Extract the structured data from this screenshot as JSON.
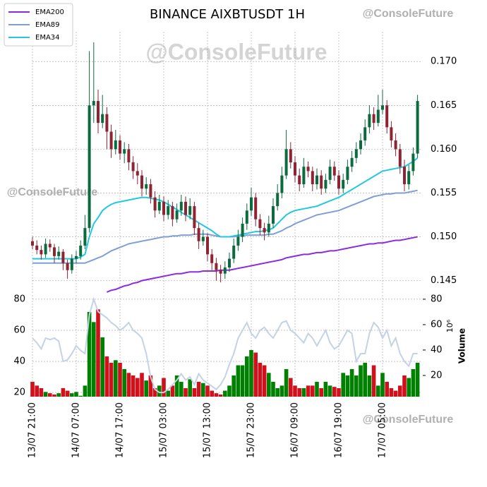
{
  "watermarks": [
    "@ConsoleFuture",
    "@ConsoleFuture",
    "@ConsoleFuture",
    "@ConsoleFuture"
  ],
  "chart_data": [
    {
      "type": "candlestick",
      "title": "BINANCE AIXBTUSDT 1H",
      "grid": true,
      "legend": "upper left",
      "colors": {
        "up": "#0b6b3e",
        "down": "#8e2433"
      },
      "ylim": [
        0.1436,
        0.1734
      ],
      "yticks": [
        0.145,
        {
          "value": 0.15,
          "label": "0.150"
        },
        0.155,
        {
          "value": 0.16,
          "label": "0.160"
        },
        0.165,
        {
          "value": 0.17,
          "label": "0.170"
        }
      ],
      "ohlc": [
        [
          0.1495,
          0.15,
          0.1486,
          0.149
        ],
        [
          0.149,
          0.1496,
          0.148,
          0.1485
        ],
        [
          0.1485,
          0.149,
          0.1474,
          0.148
        ],
        [
          0.148,
          0.1498,
          0.1476,
          0.1492
        ],
        [
          0.1492,
          0.1497,
          0.1483,
          0.1488
        ],
        [
          0.1488,
          0.1492,
          0.147,
          0.1478
        ],
        [
          0.1478,
          0.1489,
          0.1474,
          0.1483
        ],
        [
          0.1483,
          0.1486,
          0.1462,
          0.147
        ],
        [
          0.147,
          0.1474,
          0.1452,
          0.1462
        ],
        [
          0.1462,
          0.148,
          0.1458,
          0.1475
        ],
        [
          0.1475,
          0.1484,
          0.147,
          0.1478
        ],
        [
          0.1478,
          0.1496,
          0.1474,
          0.149
        ],
        [
          0.149,
          0.1525,
          0.1486,
          0.151
        ],
        [
          0.151,
          0.1712,
          0.1505,
          0.165
        ],
        [
          0.165,
          0.1722,
          0.163,
          0.1655
        ],
        [
          0.1655,
          0.1668,
          0.1618,
          0.163
        ],
        [
          0.163,
          0.1662,
          0.1624,
          0.164
        ],
        [
          0.164,
          0.1648,
          0.16,
          0.162
        ],
        [
          0.162,
          0.1628,
          0.159,
          0.16
        ],
        [
          0.16,
          0.1622,
          0.1594,
          0.161
        ],
        [
          0.161,
          0.1616,
          0.1588,
          0.1595
        ],
        [
          0.1595,
          0.1608,
          0.1584,
          0.16
        ],
        [
          0.16,
          0.1606,
          0.1576,
          0.1585
        ],
        [
          0.1585,
          0.1592,
          0.1566,
          0.1575
        ],
        [
          0.1575,
          0.1584,
          0.156,
          0.157
        ],
        [
          0.157,
          0.1576,
          0.1546,
          0.1555
        ],
        [
          0.1555,
          0.1568,
          0.1548,
          0.156
        ],
        [
          0.156,
          0.1566,
          0.1538,
          0.1545
        ],
        [
          0.1545,
          0.1552,
          0.1522,
          0.153
        ],
        [
          0.153,
          0.1548,
          0.1526,
          0.154
        ],
        [
          0.154,
          0.1546,
          0.1518,
          0.1525
        ],
        [
          0.1525,
          0.1542,
          0.152,
          0.1535
        ],
        [
          0.1535,
          0.154,
          0.1512,
          0.152
        ],
        [
          0.152,
          0.1538,
          0.1516,
          0.153
        ],
        [
          0.153,
          0.1548,
          0.1524,
          0.154
        ],
        [
          0.154,
          0.1546,
          0.1518,
          0.1525
        ],
        [
          0.1525,
          0.1544,
          0.152,
          0.1535
        ],
        [
          0.1535,
          0.154,
          0.1502,
          0.151
        ],
        [
          0.151,
          0.1516,
          0.1486,
          0.1495
        ],
        [
          0.1495,
          0.1508,
          0.149,
          0.15
        ],
        [
          0.15,
          0.1504,
          0.1472,
          0.148
        ],
        [
          0.148,
          0.1486,
          0.1462,
          0.147
        ],
        [
          0.147,
          0.1476,
          0.145,
          0.1462
        ],
        [
          0.1462,
          0.1468,
          0.1448,
          0.1458
        ],
        [
          0.1458,
          0.1472,
          0.1452,
          0.1465
        ],
        [
          0.1465,
          0.1482,
          0.146,
          0.1475
        ],
        [
          0.1475,
          0.1498,
          0.147,
          0.149
        ],
        [
          0.149,
          0.1508,
          0.1484,
          0.15
        ],
        [
          0.15,
          0.1522,
          0.1494,
          0.1515
        ],
        [
          0.1515,
          0.1538,
          0.1508,
          0.153
        ],
        [
          0.153,
          0.1556,
          0.1524,
          0.1545
        ],
        [
          0.1545,
          0.155,
          0.1512,
          0.152
        ],
        [
          0.152,
          0.1526,
          0.1502,
          0.151
        ],
        [
          0.151,
          0.1516,
          0.1496,
          0.1505
        ],
        [
          0.1505,
          0.1524,
          0.15,
          0.1515
        ],
        [
          0.1515,
          0.1544,
          0.151,
          0.1535
        ],
        [
          0.1535,
          0.156,
          0.153,
          0.155
        ],
        [
          0.155,
          0.158,
          0.1544,
          0.157
        ],
        [
          0.157,
          0.1622,
          0.1566,
          0.16
        ],
        [
          0.16,
          0.1608,
          0.1578,
          0.1585
        ],
        [
          0.1585,
          0.1592,
          0.1562,
          0.157
        ],
        [
          0.157,
          0.1578,
          0.1552,
          0.156
        ],
        [
          0.156,
          0.159,
          0.1556,
          0.158
        ],
        [
          0.158,
          0.1586,
          0.1568,
          0.1575
        ],
        [
          0.1575,
          0.158,
          0.1552,
          0.156
        ],
        [
          0.156,
          0.1578,
          0.1554,
          0.157
        ],
        [
          0.157,
          0.1576,
          0.1548,
          0.1555
        ],
        [
          0.1555,
          0.1572,
          0.155,
          0.1565
        ],
        [
          0.1565,
          0.1588,
          0.156,
          0.158
        ],
        [
          0.158,
          0.1586,
          0.1564,
          0.157
        ],
        [
          0.157,
          0.1576,
          0.1548,
          0.1555
        ],
        [
          0.1555,
          0.1572,
          0.155,
          0.1565
        ],
        [
          0.1565,
          0.1588,
          0.156,
          0.158
        ],
        [
          0.158,
          0.1598,
          0.1574,
          0.159
        ],
        [
          0.159,
          0.1608,
          0.1584,
          0.16
        ],
        [
          0.16,
          0.1618,
          0.1594,
          0.161
        ],
        [
          0.161,
          0.1634,
          0.1604,
          0.1625
        ],
        [
          0.1625,
          0.165,
          0.1618,
          0.164
        ],
        [
          0.164,
          0.1648,
          0.1622,
          0.163
        ],
        [
          0.163,
          0.1662,
          0.1626,
          0.1645
        ],
        [
          0.1645,
          0.1668,
          0.164,
          0.165
        ],
        [
          0.165,
          0.1656,
          0.1618,
          0.1625
        ],
        [
          0.1625,
          0.1632,
          0.1602,
          0.161
        ],
        [
          0.161,
          0.1618,
          0.1592,
          0.16
        ],
        [
          0.16,
          0.1606,
          0.1572,
          0.158
        ],
        [
          0.158,
          0.1588,
          0.1552,
          0.156
        ],
        [
          0.156,
          0.1582,
          0.1554,
          0.1575
        ],
        [
          0.1575,
          0.1602,
          0.157,
          0.1595
        ],
        [
          0.1595,
          0.1662,
          0.159,
          0.1655
        ]
      ],
      "series": [
        {
          "name": "EMA200",
          "color": "#8a2be2",
          "values": [
            null,
            null,
            null,
            null,
            null,
            null,
            null,
            null,
            null,
            null,
            null,
            null,
            null,
            null,
            null,
            null,
            null,
            0.1437,
            0.1439,
            0.144,
            0.1442,
            0.1444,
            0.1445,
            0.1447,
            0.1448,
            0.145,
            0.1451,
            0.1452,
            0.1453,
            0.1454,
            0.1455,
            0.1456,
            0.1457,
            0.1458,
            0.1458,
            0.1459,
            0.146,
            0.146,
            0.146,
            0.1461,
            0.1461,
            0.1461,
            0.1461,
            0.1462,
            0.1462,
            0.1462,
            0.1463,
            0.1464,
            0.1465,
            0.1466,
            0.1467,
            0.1468,
            0.1469,
            0.147,
            0.1471,
            0.1472,
            0.1473,
            0.1474,
            0.1476,
            0.1477,
            0.1478,
            0.1479,
            0.148,
            0.148,
            0.1481,
            0.1482,
            0.1482,
            0.1483,
            0.1484,
            0.1484,
            0.1485,
            0.1486,
            0.1487,
            0.1488,
            0.1489,
            0.149,
            0.1491,
            0.1492,
            0.1492,
            0.1493,
            0.1493,
            0.1494,
            0.1495,
            0.1496,
            0.1496,
            0.1497,
            0.1498,
            0.1499,
            0.15
          ]
        },
        {
          "name": "EMA89",
          "color": "#7f9fd4",
          "values": [
            0.147,
            0.147,
            0.147,
            0.147,
            0.147,
            0.147,
            0.147,
            0.147,
            0.147,
            0.147,
            0.147,
            0.147,
            0.147,
            0.1472,
            0.1474,
            0.1476,
            0.1478,
            0.1481,
            0.1484,
            0.1486,
            0.1488,
            0.149,
            0.1492,
            0.1493,
            0.1494,
            0.1495,
            0.1496,
            0.1497,
            0.1498,
            0.1499,
            0.15,
            0.15,
            0.1501,
            0.1501,
            0.1502,
            0.1502,
            0.1502,
            0.1503,
            0.1503,
            0.1503,
            0.1503,
            0.1502,
            0.1501,
            0.15,
            0.15,
            0.15,
            0.15,
            0.1501,
            0.1501,
            0.1502,
            0.1502,
            0.1502,
            0.1502,
            0.1502,
            0.1503,
            0.1503,
            0.1505,
            0.1507,
            0.151,
            0.1512,
            0.1515,
            0.1517,
            0.1519,
            0.1521,
            0.1523,
            0.1525,
            0.1526,
            0.1527,
            0.1528,
            0.1529,
            0.153,
            0.1532,
            0.1534,
            0.1536,
            0.1538,
            0.154,
            0.1542,
            0.1544,
            0.1546,
            0.1547,
            0.1548,
            0.1549,
            0.1549,
            0.155,
            0.155,
            0.155,
            0.1551,
            0.1552,
            0.1553
          ]
        },
        {
          "name": "EMA34",
          "color": "#22c8e0",
          "values": [
            0.1475,
            0.1475,
            0.1475,
            0.1475,
            0.1475,
            0.1475,
            0.1475,
            0.1475,
            0.1475,
            0.1475,
            0.1475,
            0.1477,
            0.148,
            0.15,
            0.1515,
            0.1522,
            0.153,
            0.1534,
            0.1537,
            0.1539,
            0.154,
            0.1541,
            0.1542,
            0.1543,
            0.1544,
            0.1545,
            0.1545,
            0.1544,
            0.1543,
            0.1542,
            0.154,
            0.1537,
            0.1534,
            0.1531,
            0.1528,
            0.1525,
            0.1522,
            0.1519,
            0.1516,
            0.1513,
            0.151,
            0.1507,
            0.1503,
            0.15,
            0.15,
            0.15,
            0.1501,
            0.1502,
            0.1503,
            0.1504,
            0.1505,
            0.1506,
            0.1506,
            0.1507,
            0.1508,
            0.151,
            0.1515,
            0.152,
            0.1525,
            0.1528,
            0.153,
            0.1531,
            0.1532,
            0.1533,
            0.1534,
            0.1535,
            0.1537,
            0.1539,
            0.1541,
            0.1543,
            0.1545,
            0.1548,
            0.1551,
            0.1554,
            0.1557,
            0.156,
            0.1563,
            0.1566,
            0.1569,
            0.1572,
            0.1575,
            0.1576,
            0.1577,
            0.1578,
            0.1579,
            0.158,
            0.1583,
            0.1586,
            0.159
          ]
        }
      ]
    },
    {
      "type": "bar",
      "grid": true,
      "categories": [
        "13/07 21:00",
        null,
        null,
        null,
        null,
        null,
        null,
        null,
        null,
        null,
        "14/07 07:00",
        null,
        null,
        null,
        null,
        null,
        null,
        null,
        null,
        null,
        "14/07 17:00",
        null,
        null,
        null,
        null,
        null,
        null,
        null,
        null,
        null,
        "15/07 03:00",
        null,
        null,
        null,
        null,
        null,
        null,
        null,
        null,
        null,
        "15/07 13:00",
        null,
        null,
        null,
        null,
        null,
        null,
        null,
        null,
        null,
        "15/07 23:00",
        null,
        null,
        null,
        null,
        null,
        null,
        null,
        null,
        null,
        "16/07 09:00",
        null,
        null,
        null,
        null,
        null,
        null,
        null,
        null,
        null,
        "16/07 19:00",
        null,
        null,
        null,
        null,
        null,
        null,
        null,
        null,
        null,
        "17/07 05:00",
        null,
        null,
        null,
        null,
        null,
        null,
        null,
        null
      ],
      "colors": {
        "up": "#008000",
        "down": "#d0101a"
      },
      "values": [
        15,
        12,
        10,
        7,
        6,
        5,
        6,
        10,
        8,
        6,
        7,
        4,
        12,
        70,
        62,
        72,
        50,
        35,
        30,
        32,
        30,
        25,
        22,
        20,
        18,
        22,
        16,
        20,
        10,
        12,
        18,
        8,
        12,
        20,
        15,
        10,
        17,
        10,
        15,
        14,
        12,
        8,
        6,
        5,
        8,
        12,
        20,
        28,
        28,
        35,
        40,
        38,
        30,
        28,
        22,
        15,
        10,
        12,
        25,
        18,
        12,
        10,
        10,
        12,
        12,
        15,
        10,
        15,
        12,
        11,
        10,
        22,
        20,
        25,
        20,
        28,
        30,
        20,
        28,
        12,
        22,
        15,
        10,
        8,
        12,
        20,
        18,
        25,
        30
      ],
      "axis": "y2",
      "y2label": "Volume",
      "y2scale": "10⁶",
      "y2lim": [
        3.3,
        83.3
      ],
      "y2ticks": [
        20,
        40,
        60,
        80
      ],
      "line": {
        "color": "#c4d2e6",
        "values": [
          55,
          52,
          48,
          55,
          54,
          55,
          53,
          40,
          41,
          45,
          50,
          47,
          45,
          70,
          80,
          72,
          70,
          68,
          65,
          63,
          60,
          62,
          65,
          60,
          58,
          55,
          45,
          30,
          22,
          20,
          20,
          22,
          25,
          28,
          32,
          28,
          30,
          25,
          32,
          28,
          26,
          24,
          22,
          25,
          30,
          38,
          45,
          55,
          60,
          65,
          58,
          55,
          60,
          62,
          58,
          55,
          60,
          65,
          66,
          60,
          58,
          55,
          52,
          58,
          55,
          50,
          55,
          60,
          52,
          48,
          50,
          55,
          60,
          58,
          40,
          45,
          45,
          58,
          65,
          62,
          55,
          60,
          50,
          55,
          45,
          40,
          37,
          45,
          45
        ]
      },
      "ylim": [
        17.3,
        82.7
      ],
      "yticks": [
        20,
        40,
        60,
        80
      ]
    }
  ]
}
